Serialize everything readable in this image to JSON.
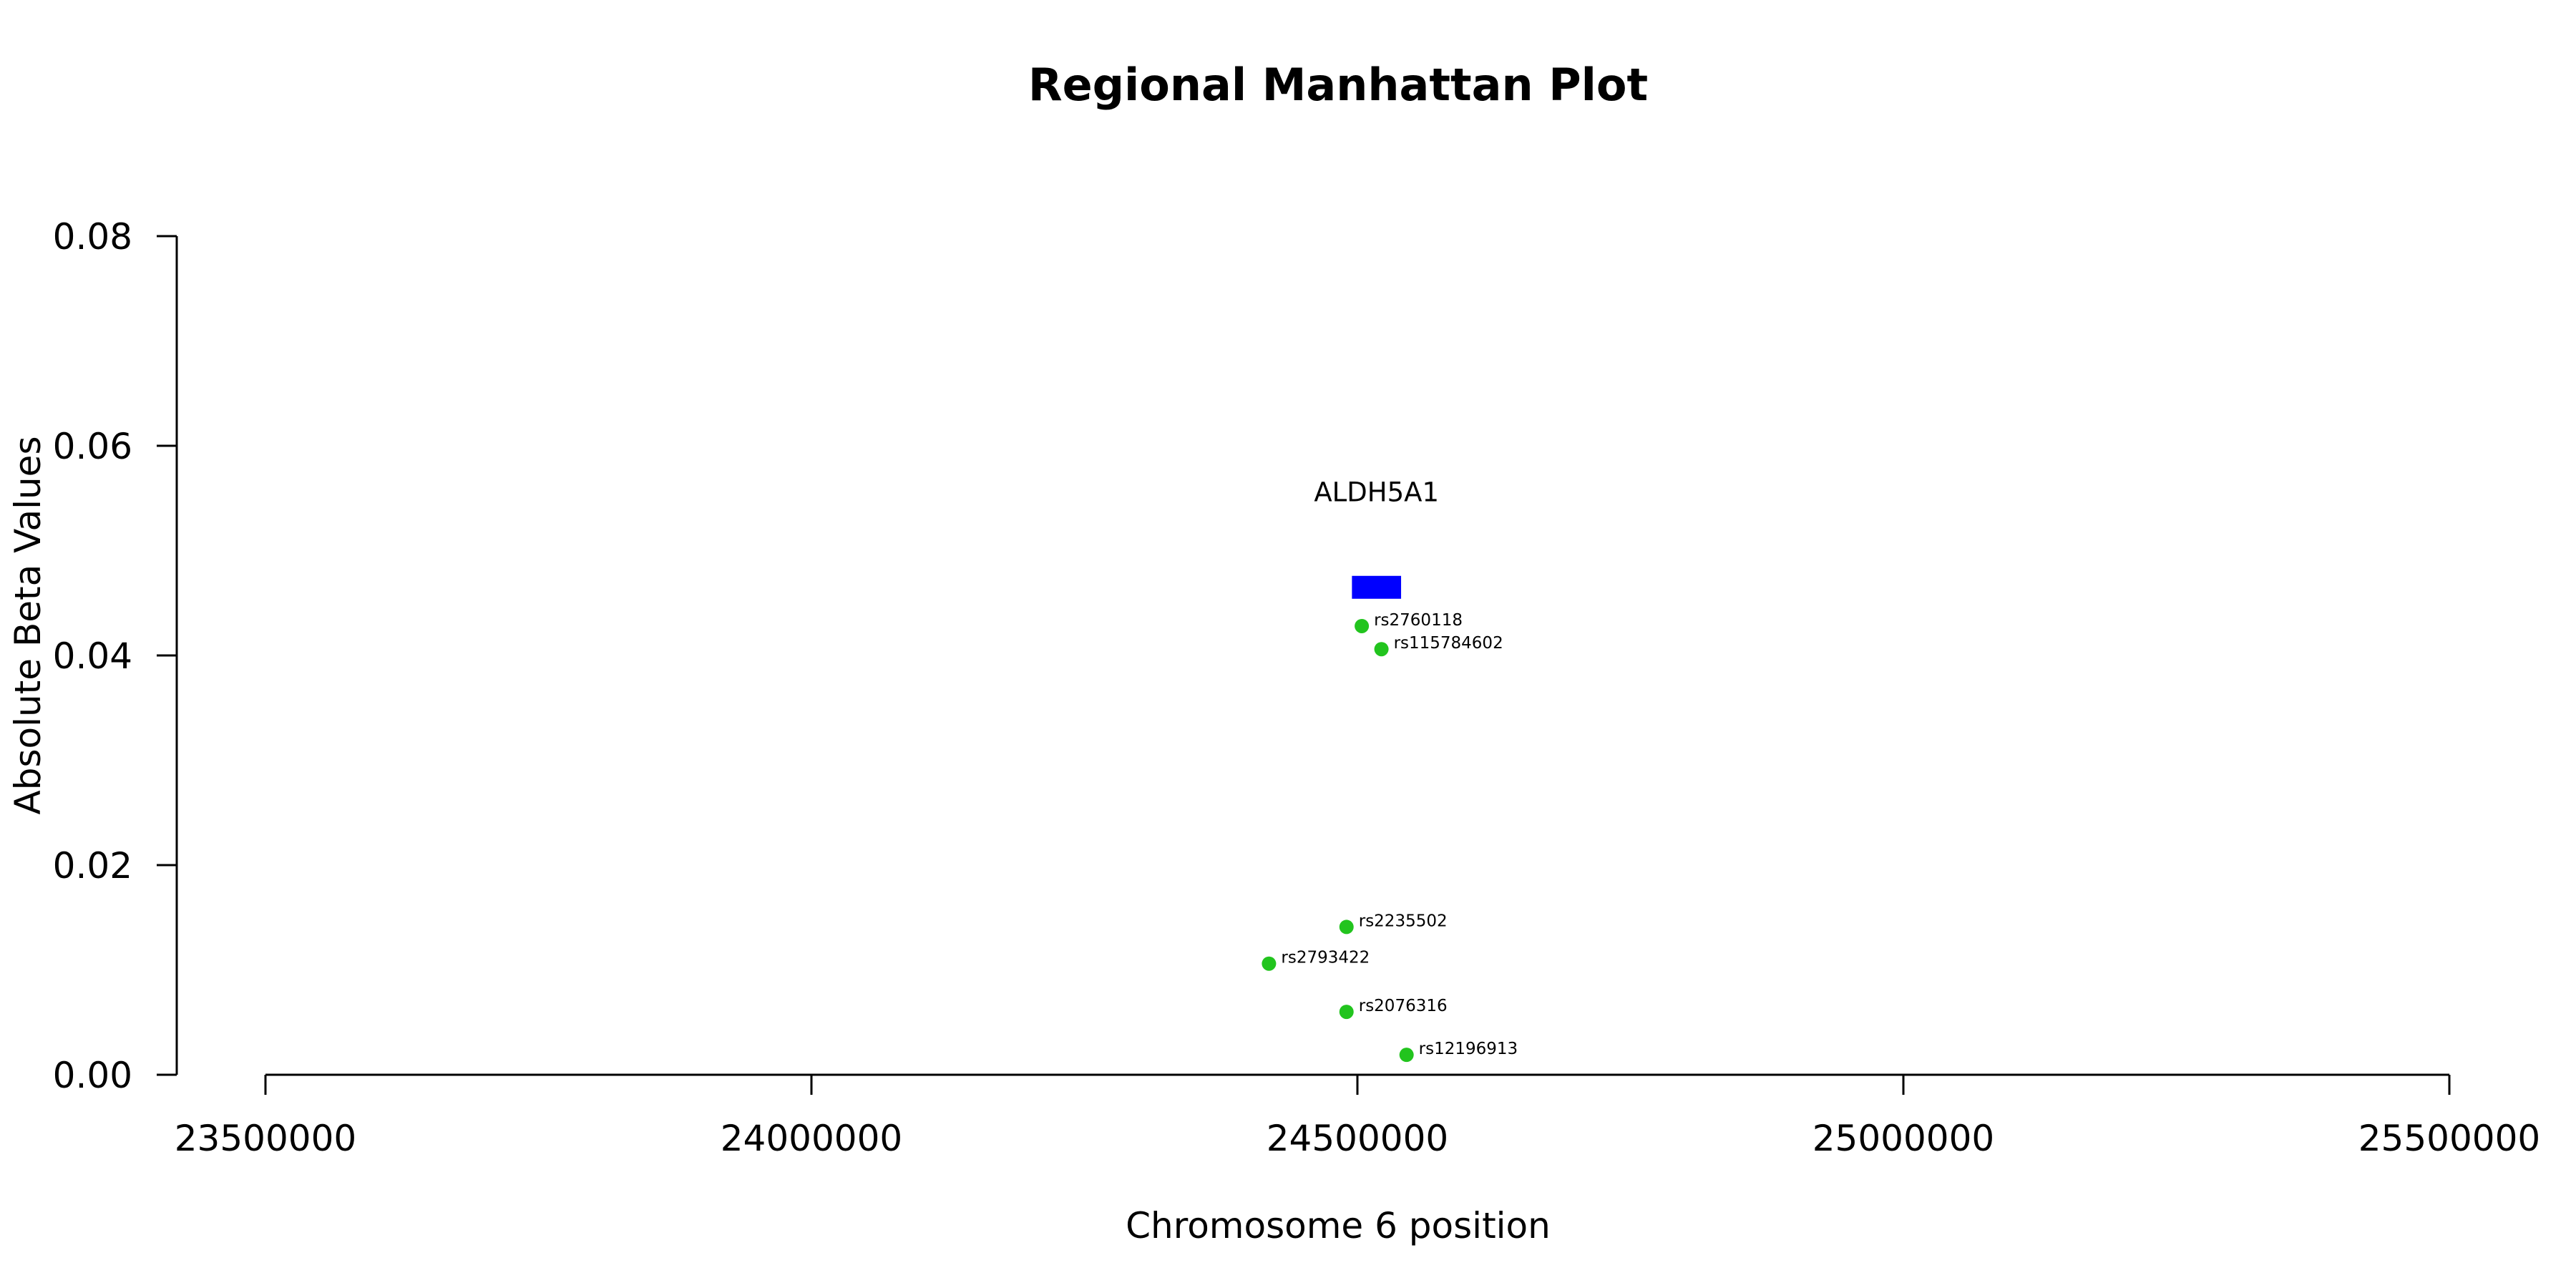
{
  "chart_data": {
    "type": "scatter",
    "title": "Regional Manhattan Plot",
    "xlabel": "Chromosome 6 position",
    "ylabel": "Absolute Beta Values",
    "xlim": [
      23500000,
      25500000
    ],
    "ylim": [
      0,
      0.08
    ],
    "x_ticks": [
      "23500000",
      "24000000",
      "24500000",
      "25000000",
      "25500000"
    ],
    "y_ticks": [
      "0.00",
      "0.02",
      "0.04",
      "0.06",
      "0.08"
    ],
    "point_color": "#22c41e",
    "points": [
      {
        "label": "rs2760118",
        "x": 24504000,
        "y": 0.0428
      },
      {
        "label": "rs115784602",
        "x": 24522000,
        "y": 0.0406
      },
      {
        "label": "rs2235502",
        "x": 24490000,
        "y": 0.0141
      },
      {
        "label": "rs2793422",
        "x": 24419000,
        "y": 0.0106
      },
      {
        "label": "rs2076316",
        "x": 24490000,
        "y": 0.006
      },
      {
        "label": "rs12196913",
        "x": 24545000,
        "y": 0.0019
      }
    ],
    "genes": [
      {
        "name": "ALDH5A1",
        "start": 24495000,
        "end": 24540000,
        "y": 0.0465,
        "color": "#0000ff"
      }
    ],
    "grid": false,
    "legend": "none"
  }
}
